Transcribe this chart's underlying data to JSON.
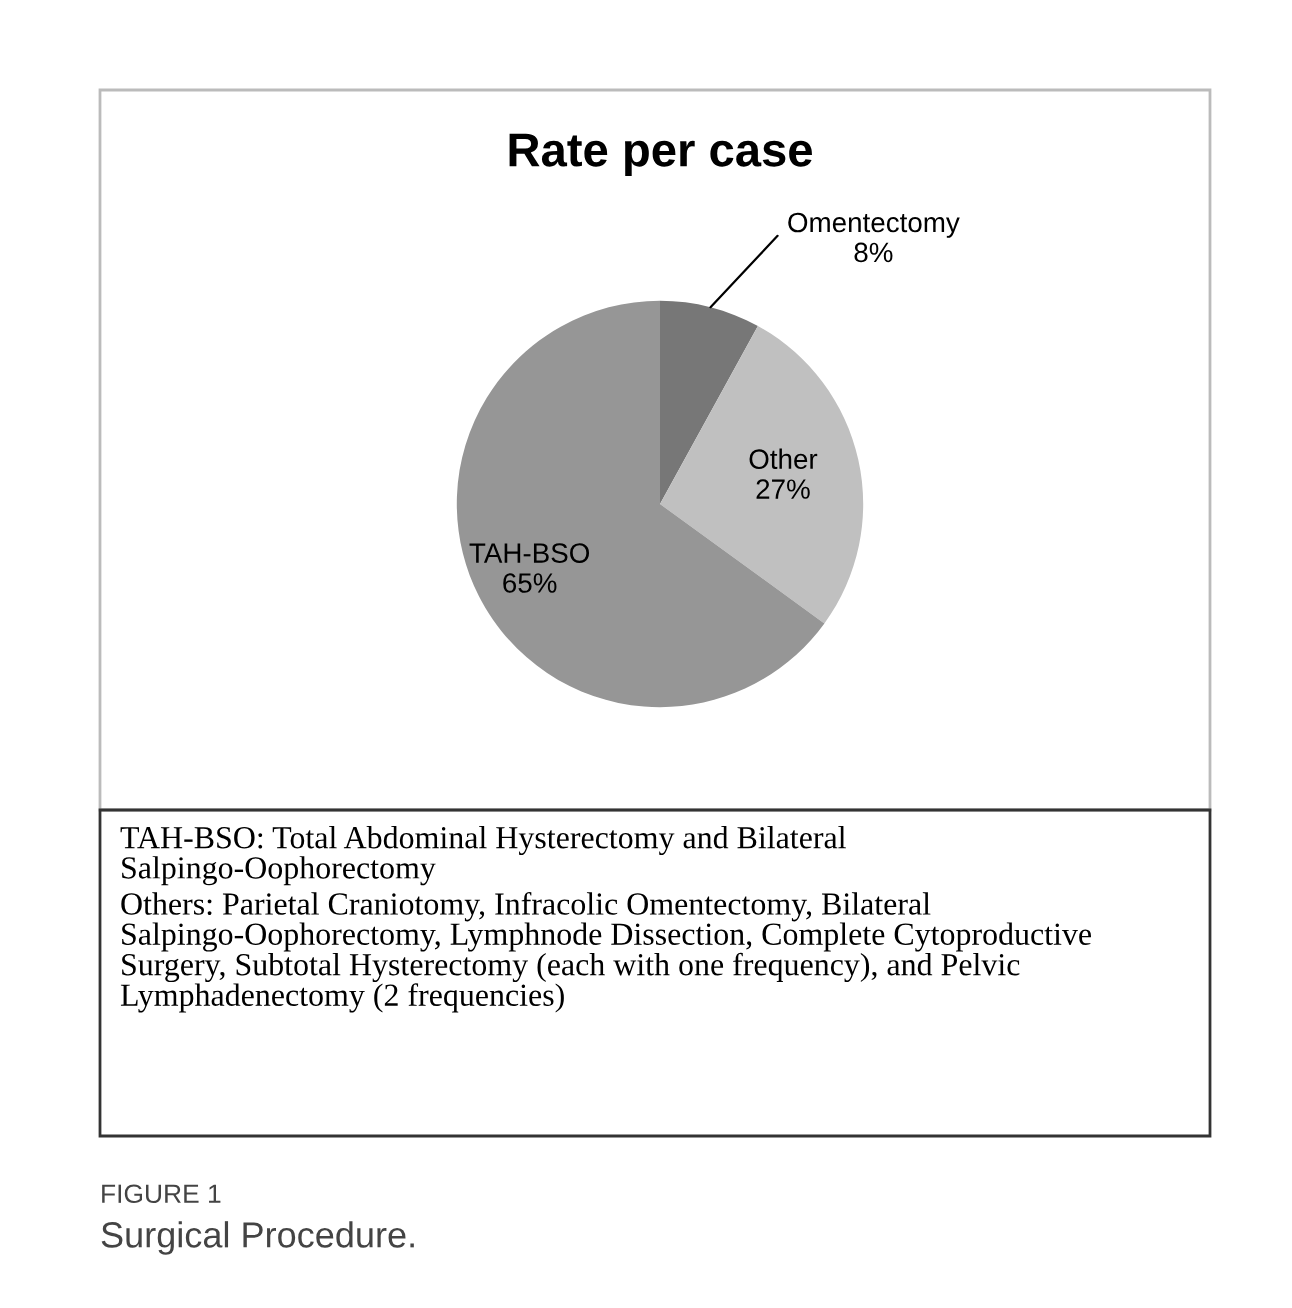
{
  "chart_data": {
    "type": "pie",
    "title": "Rate per case",
    "categories": [
      "Omentectomy",
      "Other",
      "TAH-BSO"
    ],
    "values": [
      8,
      27,
      65
    ],
    "value_labels": [
      "8%",
      "27%",
      "65%"
    ],
    "colors": [
      "#777777",
      "#c0c0c0",
      "#969696"
    ],
    "legend": false,
    "annotations": [
      "TAH-BSO: Total Abdominal Hysterectomy and Bilateral Salpingo-Oophorectomy",
      "Others: Parietal Craniotomy, Infracolic Omentectomy, Bilateral Salpingo-Oophorectomy, Lymphnode Dissection, Complete Cytoproductive Surgery, Subtotal Hysterectomy (each with one frequency), and Pelvic Lymphadenectomy (2 frequencies)",
      "FIGURE 1",
      "Surgical Procedure."
    ]
  }
}
